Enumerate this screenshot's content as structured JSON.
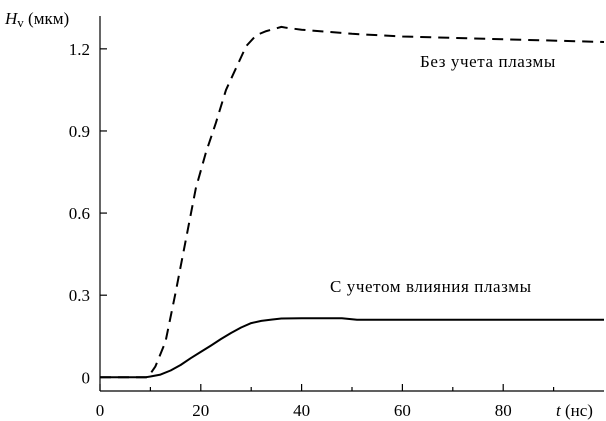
{
  "chart_data": {
    "type": "line",
    "ylabel": {
      "symbol": "H",
      "subscript": "v",
      "unit": "(мкм)"
    },
    "xlabel": {
      "symbol": "t",
      "unit": "(нс)"
    },
    "xlim": [
      0,
      100
    ],
    "ylim": [
      -0.05,
      1.32
    ],
    "xticks": [
      0,
      20,
      40,
      60,
      80
    ],
    "xtick_labels": [
      "0",
      "20",
      "40",
      "60",
      "80"
    ],
    "yticks": [
      0,
      0.3,
      0.6,
      0.9,
      1.2
    ],
    "ytick_labels": [
      "0",
      "0.3",
      "0.6",
      "0.9",
      "1.2"
    ],
    "grid": false,
    "legend": "none",
    "series": [
      {
        "name": "Без учета плазмы",
        "style": "dashed",
        "color": "#000000",
        "x": [
          0,
          8,
          9.5,
          11,
          13,
          15,
          17,
          19,
          21,
          23,
          25,
          27,
          29,
          31,
          33,
          35,
          36,
          37,
          40,
          50,
          60,
          70,
          80,
          90,
          100
        ],
        "y": [
          0,
          0,
          0,
          0.04,
          0.13,
          0.31,
          0.5,
          0.69,
          0.82,
          0.93,
          1.05,
          1.13,
          1.21,
          1.25,
          1.265,
          1.275,
          1.28,
          1.277,
          1.27,
          1.255,
          1.245,
          1.24,
          1.235,
          1.23,
          1.225
        ]
      },
      {
        "name": "С учетом влияния плазмы",
        "style": "solid",
        "color": "#000000",
        "x": [
          0,
          5,
          9,
          10,
          12,
          14,
          16,
          18,
          20,
          22,
          24,
          26,
          28,
          30,
          32,
          34,
          36,
          40,
          45,
          48,
          51,
          60,
          70,
          80,
          90,
          100
        ],
        "y": [
          0,
          0,
          0,
          0.003,
          0.01,
          0.025,
          0.045,
          0.07,
          0.093,
          0.116,
          0.14,
          0.162,
          0.182,
          0.198,
          0.206,
          0.211,
          0.215,
          0.216,
          0.216,
          0.216,
          0.21,
          0.21,
          0.21,
          0.21,
          0.21,
          0.21
        ]
      }
    ]
  }
}
